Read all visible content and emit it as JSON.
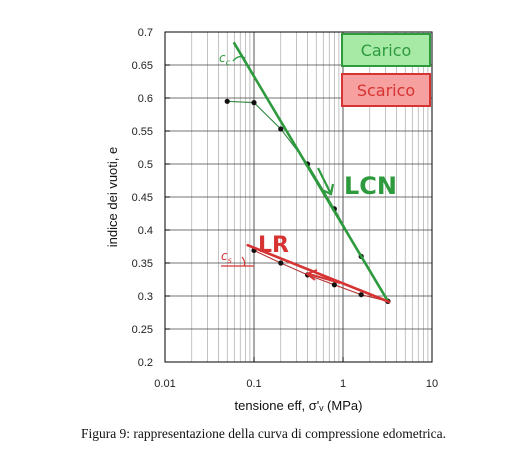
{
  "chart_data": {
    "type": "scatter",
    "x_scale": "log",
    "xlim": [
      0.01,
      10
    ],
    "ylim": [
      0.2,
      0.7
    ],
    "x_ticks": [
      {
        "value": 0.01,
        "label": "0.01"
      },
      {
        "value": 0.1,
        "label": "0.1"
      },
      {
        "value": 1,
        "label": "1"
      },
      {
        "value": 10,
        "label": "10"
      }
    ],
    "y_ticks": [
      {
        "value": 0.7,
        "label": "0.7"
      },
      {
        "value": 0.65,
        "label": "0.65"
      },
      {
        "value": 0.6,
        "label": "0.6"
      },
      {
        "value": 0.55,
        "label": "0.55"
      },
      {
        "value": 0.5,
        "label": "0.5"
      },
      {
        "value": 0.45,
        "label": "0.45"
      },
      {
        "value": 0.4,
        "label": "0.4"
      },
      {
        "value": 0.35,
        "label": "0.35"
      },
      {
        "value": 0.3,
        "label": "0.3"
      },
      {
        "value": 0.25,
        "label": "0.25"
      },
      {
        "value": 0.2,
        "label": "0.2"
      }
    ],
    "xlabel": "tensione eff, σ'ᵥ  (MPa)",
    "ylabel": "indice dei vuoti, e",
    "grid": true,
    "series": [
      {
        "name": "Carico",
        "color": "#2e9a3e",
        "points": [
          {
            "x": 0.05,
            "y": 0.595
          },
          {
            "x": 0.1,
            "y": 0.593
          },
          {
            "x": 0.2,
            "y": 0.553
          },
          {
            "x": 0.4,
            "y": 0.5
          },
          {
            "x": 0.8,
            "y": 0.432
          },
          {
            "x": 1.6,
            "y": 0.36
          },
          {
            "x": 3.2,
            "y": 0.292
          }
        ]
      },
      {
        "name": "Scarico",
        "color": "#d63333",
        "points": [
          {
            "x": 3.2,
            "y": 0.292
          },
          {
            "x": 1.6,
            "y": 0.302
          },
          {
            "x": 0.8,
            "y": 0.317
          },
          {
            "x": 0.4,
            "y": 0.332
          },
          {
            "x": 0.2,
            "y": 0.35
          },
          {
            "x": 0.1,
            "y": 0.369
          }
        ]
      }
    ],
    "fit_lines": [
      {
        "label": "LCN",
        "color": "#2e9a3e",
        "from": {
          "x": 0.06,
          "y": 0.683
        },
        "to": {
          "x": 3.2,
          "y": 0.292
        }
      },
      {
        "label": "LR",
        "color": "#d63333",
        "from": {
          "x": 0.085,
          "y": 0.377
        },
        "to": {
          "x": 3.3,
          "y": 0.291
        }
      }
    ],
    "annotations": {
      "cc": "c",
      "cc_sub": "c",
      "cs": "c",
      "cs_sub": "s",
      "lcn": "LCN",
      "lr": "LR"
    },
    "legend": {
      "placement": "top-right",
      "entries": [
        {
          "label": "Carico",
          "color": "#2e9a3e",
          "fill": "#a6eaa6"
        },
        {
          "label": "Scarico",
          "color": "#d63333",
          "fill": "#f6a0a0"
        }
      ]
    }
  },
  "caption": "Figura 9: rappresentazione della curva di compressione edometrica."
}
